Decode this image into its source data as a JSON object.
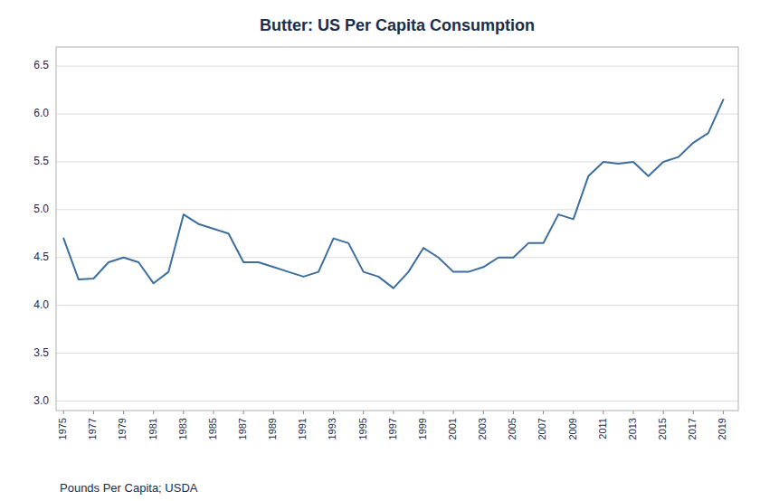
{
  "chart_data": {
    "type": "line",
    "title": "Butter: US Per Capita Consumption",
    "annotations": [
      "Pounds Per Capita; USDA"
    ],
    "x": [
      1975,
      1976,
      1977,
      1978,
      1979,
      1980,
      1981,
      1982,
      1983,
      1984,
      1985,
      1986,
      1987,
      1988,
      1989,
      1990,
      1991,
      1992,
      1993,
      1994,
      1995,
      1996,
      1997,
      1998,
      1999,
      2000,
      2001,
      2002,
      2003,
      2004,
      2005,
      2006,
      2007,
      2008,
      2009,
      2010,
      2011,
      2012,
      2013,
      2014,
      2015,
      2016,
      2017,
      2018,
      2019
    ],
    "values": [
      4.7,
      4.27,
      4.28,
      4.45,
      4.5,
      4.45,
      4.23,
      4.35,
      4.95,
      4.85,
      4.8,
      4.75,
      4.45,
      4.45,
      4.4,
      4.35,
      4.3,
      4.35,
      4.7,
      4.65,
      4.35,
      4.3,
      4.18,
      4.35,
      4.6,
      4.5,
      4.35,
      4.35,
      4.4,
      4.5,
      4.5,
      4.65,
      4.65,
      4.95,
      4.9,
      5.35,
      5.5,
      5.48,
      5.5,
      5.35,
      5.5,
      5.55,
      5.7,
      5.8,
      6.15
    ],
    "color": "#3d6f9e",
    "xlim": [
      1974.5,
      2020.0
    ],
    "xticks": [
      1975,
      1977,
      1979,
      1981,
      1983,
      1985,
      1987,
      1989,
      1991,
      1993,
      1995,
      1997,
      1999,
      2001,
      2003,
      2005,
      2007,
      2009,
      2011,
      2013,
      2015,
      2017,
      2019
    ],
    "ylim": [
      2.9,
      6.7
    ],
    "yticks": [
      {
        "value": 3.0,
        "label": "3.0"
      },
      3.5,
      {
        "value": 4.0,
        "label": "4.0"
      },
      4.5,
      {
        "value": 5.0,
        "label": "5.0"
      },
      5.5,
      {
        "value": 6.0,
        "label": "6.0"
      },
      6.5
    ],
    "grid": true
  }
}
